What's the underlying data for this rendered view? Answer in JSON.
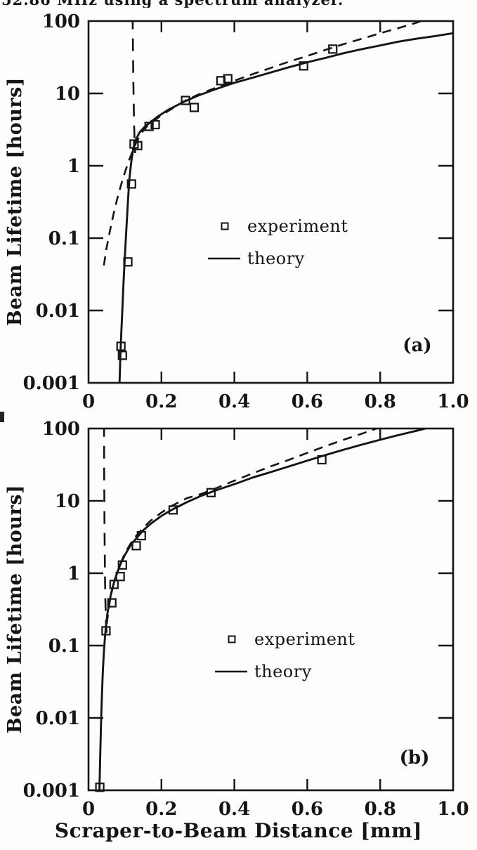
{
  "page": {
    "caption_fragment": "52.86 MHz using a spectrum analyzer.",
    "x_axis_title": "Scraper-to-Beam Distance [mm]",
    "ink_color": "#151515",
    "paper_color": "#fdfdfb"
  },
  "chart_data": [
    {
      "type": "scatter",
      "panel_label": "(a)",
      "xlabel": "Scraper-to-Beam Distance [mm]",
      "ylabel": "Beam Lifetime [hours]",
      "x_scale": "linear",
      "y_scale": "log",
      "xlim": [
        0,
        1.0
      ],
      "ylim": [
        0.001,
        100
      ],
      "x_ticks": [
        0.2,
        0.4,
        0.6,
        0.8
      ],
      "x_tick_labels": [
        "0",
        "0.2",
        "0.4",
        "0.6",
        "0.8",
        "1.0"
      ],
      "x_tick_label_values": [
        0,
        0.2,
        0.4,
        0.6,
        0.8,
        1.0
      ],
      "y_ticks": [
        10,
        1,
        0.1,
        0.01
      ],
      "y_tick_labels": [
        "100",
        "10",
        "1",
        "0.1",
        "0.01",
        "0.001"
      ],
      "y_tick_label_values": [
        100,
        10,
        1,
        0.1,
        0.01,
        0.001
      ],
      "grid": false,
      "legend_position": "inside-center-left",
      "legend": [
        {
          "symbol": "open-square",
          "label": "experiment"
        },
        {
          "symbol": "solid-line",
          "label": "theory"
        }
      ],
      "series": [
        {
          "name": "experiment",
          "role": "scatter",
          "marker": "open-square",
          "points": [
            [
              0.089,
              0.0032
            ],
            [
              0.093,
              0.0024
            ],
            [
              0.108,
              0.047
            ],
            [
              0.118,
              0.56
            ],
            [
              0.125,
              2.0
            ],
            [
              0.135,
              1.9
            ],
            [
              0.166,
              3.5
            ],
            [
              0.183,
              3.7
            ],
            [
              0.266,
              8.0
            ],
            [
              0.29,
              6.4
            ],
            [
              0.363,
              15
            ],
            [
              0.382,
              16
            ],
            [
              0.59,
              24
            ],
            [
              0.67,
              41
            ]
          ]
        },
        {
          "name": "theory",
          "role": "line",
          "line": "solid",
          "points": [
            [
              0.0845,
              0.0008
            ],
            [
              0.087,
              0.0022
            ],
            [
              0.09,
              0.005
            ],
            [
              0.093,
              0.011
            ],
            [
              0.096,
              0.024
            ],
            [
              0.1,
              0.06
            ],
            [
              0.104,
              0.14
            ],
            [
              0.108,
              0.32
            ],
            [
              0.112,
              0.65
            ],
            [
              0.117,
              1.1
            ],
            [
              0.123,
              1.75
            ],
            [
              0.13,
              2.3
            ],
            [
              0.14,
              2.9
            ],
            [
              0.155,
              3.5
            ],
            [
              0.17,
              4.0
            ],
            [
              0.19,
              4.8
            ],
            [
              0.22,
              6.0
            ],
            [
              0.26,
              7.6
            ],
            [
              0.3,
              9.3
            ],
            [
              0.35,
              11.5
            ],
            [
              0.4,
              14
            ],
            [
              0.45,
              16.5
            ],
            [
              0.5,
              19.5
            ],
            [
              0.55,
              23
            ],
            [
              0.6,
              27
            ],
            [
              0.65,
              31
            ],
            [
              0.7,
              36
            ],
            [
              0.75,
              41
            ],
            [
              0.8,
              46
            ],
            [
              0.85,
              52
            ],
            [
              0.9,
              57
            ],
            [
              0.95,
              62
            ],
            [
              1.0,
              68
            ]
          ]
        },
        {
          "name": "theory-branch-steep",
          "role": "line",
          "line": "dashed",
          "points": [
            [
              0.121,
              115
            ],
            [
              0.122,
              40
            ],
            [
              0.123,
              15
            ],
            [
              0.124,
              7.0
            ],
            [
              0.125,
              3.5
            ],
            [
              0.1265,
              2.2
            ],
            [
              0.128,
              1.5
            ]
          ]
        },
        {
          "name": "theory-branch-smooth",
          "role": "line",
          "line": "dashed",
          "points": [
            [
              0.042,
              0.042
            ],
            [
              0.05,
              0.075
            ],
            [
              0.06,
              0.135
            ],
            [
              0.07,
              0.23
            ],
            [
              0.08,
              0.37
            ],
            [
              0.09,
              0.56
            ],
            [
              0.1,
              0.82
            ],
            [
              0.11,
              1.15
            ],
            [
              0.12,
              1.55
            ],
            [
              0.13,
              2.05
            ],
            [
              0.145,
              2.85
            ],
            [
              0.16,
              3.5
            ],
            [
              0.18,
              4.2
            ],
            [
              0.2,
              5.0
            ],
            [
              0.23,
              6.2
            ],
            [
              0.26,
              7.7
            ],
            [
              0.3,
              9.6
            ],
            [
              0.35,
              12
            ],
            [
              0.4,
              15
            ],
            [
              0.45,
              18.5
            ],
            [
              0.5,
              22.5
            ],
            [
              0.55,
              27.5
            ],
            [
              0.6,
              33
            ],
            [
              0.65,
              40
            ],
            [
              0.7,
              48
            ],
            [
              0.75,
              57
            ],
            [
              0.8,
              68
            ],
            [
              0.85,
              80
            ],
            [
              0.9,
              95
            ],
            [
              0.93,
              108
            ]
          ]
        }
      ]
    },
    {
      "type": "scatter",
      "panel_label": "(b)",
      "xlabel": "Scraper-to-Beam Distance [mm]",
      "ylabel": "Beam Lifetime [hours]",
      "x_scale": "linear",
      "y_scale": "log",
      "xlim": [
        0,
        1.0
      ],
      "ylim": [
        0.001,
        100
      ],
      "x_ticks": [
        0.2,
        0.4,
        0.6,
        0.8
      ],
      "x_tick_labels": [
        "0",
        "0.2",
        "0.4",
        "0.6",
        "0.8",
        "1.0"
      ],
      "x_tick_label_values": [
        0,
        0.2,
        0.4,
        0.6,
        0.8,
        1.0
      ],
      "y_ticks": [
        10,
        1,
        0.1,
        0.01
      ],
      "y_tick_labels": [
        "100",
        "10",
        "1",
        "0.1",
        "0.01",
        "0.001"
      ],
      "y_tick_label_values": [
        100,
        10,
        1,
        0.1,
        0.01,
        0.001
      ],
      "grid": false,
      "legend_position": "inside-center-left",
      "legend": [
        {
          "symbol": "open-square",
          "label": "experiment"
        },
        {
          "symbol": "solid-line",
          "label": "theory"
        }
      ],
      "series": [
        {
          "name": "experiment",
          "role": "scatter",
          "marker": "open-square",
          "points": [
            [
              0.031,
              0.0011
            ],
            [
              0.048,
              0.16
            ],
            [
              0.064,
              0.39
            ],
            [
              0.07,
              0.7
            ],
            [
              0.087,
              0.9
            ],
            [
              0.093,
              1.3
            ],
            [
              0.131,
              2.4
            ],
            [
              0.145,
              3.3
            ],
            [
              0.232,
              7.5
            ],
            [
              0.336,
              13
            ],
            [
              0.64,
              37
            ]
          ]
        },
        {
          "name": "theory",
          "role": "line",
          "line": "solid",
          "points": [
            [
              0.0295,
              0.0008
            ],
            [
              0.032,
              0.0028
            ],
            [
              0.034,
              0.007
            ],
            [
              0.036,
              0.016
            ],
            [
              0.039,
              0.04
            ],
            [
              0.042,
              0.08
            ],
            [
              0.045,
              0.13
            ],
            [
              0.048,
              0.19
            ],
            [
              0.052,
              0.28
            ],
            [
              0.057,
              0.4
            ],
            [
              0.063,
              0.55
            ],
            [
              0.07,
              0.75
            ],
            [
              0.078,
              1.0
            ],
            [
              0.088,
              1.35
            ],
            [
              0.1,
              1.8
            ],
            [
              0.115,
              2.4
            ],
            [
              0.13,
              3.0
            ],
            [
              0.15,
              3.9
            ],
            [
              0.17,
              4.8
            ],
            [
              0.2,
              6.2
            ],
            [
              0.23,
              7.6
            ],
            [
              0.27,
              9.6
            ],
            [
              0.31,
              11.8
            ],
            [
              0.35,
              14
            ],
            [
              0.4,
              17
            ],
            [
              0.45,
              21
            ],
            [
              0.5,
              25
            ],
            [
              0.55,
              30
            ],
            [
              0.6,
              36
            ],
            [
              0.65,
              43
            ],
            [
              0.7,
              51
            ],
            [
              0.75,
              60
            ],
            [
              0.8,
              70
            ],
            [
              0.85,
              81
            ],
            [
              0.9,
              93
            ],
            [
              0.94,
              105
            ]
          ]
        },
        {
          "name": "theory-branch-steep",
          "role": "line",
          "line": "dashed",
          "points": [
            [
              0.0425,
              115
            ],
            [
              0.043,
              25
            ],
            [
              0.044,
              4.0
            ],
            [
              0.045,
              1.0
            ],
            [
              0.046,
              0.45
            ],
            [
              0.048,
              0.21
            ],
            [
              0.051,
              0.12
            ]
          ]
        },
        {
          "name": "theory-branch-smooth",
          "role": "line",
          "line": "dashed",
          "points": [
            [
              0.05,
              0.2
            ],
            [
              0.06,
              0.46
            ],
            [
              0.07,
              0.76
            ],
            [
              0.08,
              1.06
            ],
            [
              0.09,
              1.45
            ],
            [
              0.1,
              1.9
            ],
            [
              0.115,
              2.55
            ],
            [
              0.13,
              3.25
            ],
            [
              0.15,
              4.25
            ],
            [
              0.17,
              5.3
            ],
            [
              0.2,
              6.9
            ],
            [
              0.23,
              8.6
            ],
            [
              0.27,
              10.9
            ],
            [
              0.31,
              12.5
            ],
            [
              0.35,
              15
            ],
            [
              0.4,
              19
            ],
            [
              0.45,
              24
            ],
            [
              0.5,
              30
            ],
            [
              0.55,
              37
            ],
            [
              0.6,
              46
            ],
            [
              0.65,
              57
            ],
            [
              0.7,
              70
            ],
            [
              0.75,
              85
            ],
            [
              0.79,
              100
            ],
            [
              0.815,
              112
            ]
          ]
        }
      ]
    }
  ]
}
